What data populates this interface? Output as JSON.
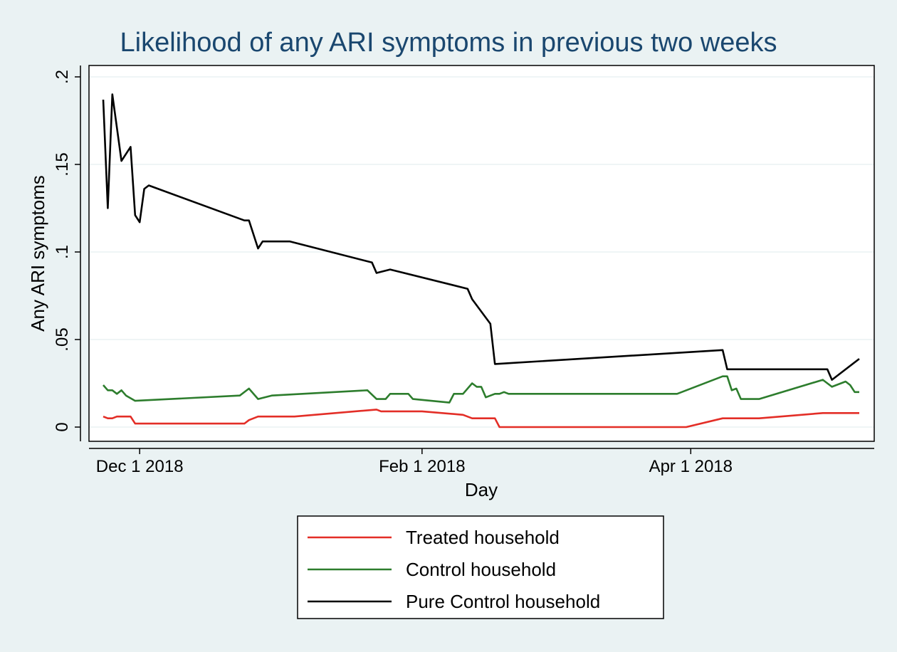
{
  "chart_data": {
    "type": "line",
    "title": "Likelihood of any ARI symptoms in previous two weeks",
    "xlabel": "Day",
    "ylabel": "Any ARI symptoms",
    "ylim": [
      0,
      0.2
    ],
    "y_ticks": [
      {
        "value": 0,
        "label": "0"
      },
      {
        "value": 0.05,
        "label": ".05"
      },
      {
        "value": 0.1,
        "label": ".1"
      },
      {
        "value": 0.15,
        "label": ".15"
      },
      {
        "value": 0.2,
        "label": ".2"
      }
    ],
    "x_ticks": [
      "Dec 1 2018",
      "Feb 1 2018",
      "Apr 1 2018"
    ],
    "grid": true,
    "legend_position": "bottom",
    "series": [
      {
        "name": "Treated household",
        "color": "#e32e27",
        "points": [
          [
            "2017-11-23",
            0.006
          ],
          [
            "2017-11-24",
            0.005
          ],
          [
            "2017-11-25",
            0.005
          ],
          [
            "2017-11-26",
            0.006
          ],
          [
            "2017-11-28",
            0.006
          ],
          [
            "2017-11-29",
            0.006
          ],
          [
            "2017-11-30",
            0.002
          ],
          [
            "2017-12-05",
            0.002
          ],
          [
            "2017-12-24",
            0.002
          ],
          [
            "2017-12-25",
            0.004
          ],
          [
            "2017-12-27",
            0.006
          ],
          [
            "2018-01-04",
            0.006
          ],
          [
            "2018-01-22",
            0.01
          ],
          [
            "2018-01-23",
            0.009
          ],
          [
            "2018-02-01",
            0.009
          ],
          [
            "2018-02-10",
            0.007
          ],
          [
            "2018-02-12",
            0.005
          ],
          [
            "2018-02-17",
            0.005
          ],
          [
            "2018-02-18",
            0.0
          ],
          [
            "2018-03-31",
            0.0
          ],
          [
            "2018-04-08",
            0.005
          ],
          [
            "2018-04-16",
            0.005
          ],
          [
            "2018-04-30",
            0.008
          ],
          [
            "2018-05-08",
            0.008
          ]
        ]
      },
      {
        "name": "Control household",
        "color": "#2d7d2d",
        "points": [
          [
            "2017-11-23",
            0.024
          ],
          [
            "2017-11-24",
            0.021
          ],
          [
            "2017-11-25",
            0.021
          ],
          [
            "2017-11-26",
            0.019
          ],
          [
            "2017-11-27",
            0.021
          ],
          [
            "2017-11-28",
            0.018
          ],
          [
            "2017-11-30",
            0.015
          ],
          [
            "2017-12-23",
            0.018
          ],
          [
            "2017-12-25",
            0.022
          ],
          [
            "2017-12-27",
            0.016
          ],
          [
            "2017-12-30",
            0.018
          ],
          [
            "2018-01-20",
            0.021
          ],
          [
            "2018-01-22",
            0.016
          ],
          [
            "2018-01-24",
            0.016
          ],
          [
            "2018-01-25",
            0.019
          ],
          [
            "2018-01-29",
            0.019
          ],
          [
            "2018-01-30",
            0.016
          ],
          [
            "2018-02-07",
            0.014
          ],
          [
            "2018-02-08",
            0.019
          ],
          [
            "2018-02-10",
            0.019
          ],
          [
            "2018-02-12",
            0.025
          ],
          [
            "2018-02-13",
            0.023
          ],
          [
            "2018-02-14",
            0.023
          ],
          [
            "2018-02-15",
            0.017
          ],
          [
            "2018-02-17",
            0.019
          ],
          [
            "2018-02-18",
            0.019
          ],
          [
            "2018-02-19",
            0.02
          ],
          [
            "2018-02-20",
            0.019
          ],
          [
            "2018-03-29",
            0.019
          ],
          [
            "2018-04-08",
            0.029
          ],
          [
            "2018-04-09",
            0.029
          ],
          [
            "2018-04-10",
            0.021
          ],
          [
            "2018-04-11",
            0.022
          ],
          [
            "2018-04-12",
            0.016
          ],
          [
            "2018-04-16",
            0.016
          ],
          [
            "2018-04-30",
            0.027
          ],
          [
            "2018-05-02",
            0.023
          ],
          [
            "2018-05-05",
            0.026
          ],
          [
            "2018-05-06",
            0.024
          ],
          [
            "2018-05-07",
            0.02
          ],
          [
            "2018-05-08",
            0.02
          ]
        ]
      },
      {
        "name": "Pure Control household",
        "color": "#000000",
        "points": [
          [
            "2017-11-23",
            0.187
          ],
          [
            "2017-11-24",
            0.125
          ],
          [
            "2017-11-25",
            0.19
          ],
          [
            "2017-11-27",
            0.152
          ],
          [
            "2017-11-29",
            0.16
          ],
          [
            "2017-11-30",
            0.121
          ],
          [
            "2017-12-01",
            0.117
          ],
          [
            "2017-12-02",
            0.136
          ],
          [
            "2017-12-03",
            0.138
          ],
          [
            "2017-12-24",
            0.118
          ],
          [
            "2017-12-25",
            0.118
          ],
          [
            "2017-12-27",
            0.102
          ],
          [
            "2017-12-28",
            0.106
          ],
          [
            "2018-01-03",
            0.106
          ],
          [
            "2018-01-21",
            0.094
          ],
          [
            "2018-01-22",
            0.088
          ],
          [
            "2018-01-25",
            0.09
          ],
          [
            "2018-02-11",
            0.079
          ],
          [
            "2018-02-12",
            0.073
          ],
          [
            "2018-02-16",
            0.059
          ],
          [
            "2018-02-17",
            0.036
          ],
          [
            "2018-04-08",
            0.044
          ],
          [
            "2018-04-09",
            0.033
          ],
          [
            "2018-05-01",
            0.033
          ],
          [
            "2018-05-02",
            0.027
          ],
          [
            "2018-05-08",
            0.039
          ]
        ]
      }
    ]
  }
}
